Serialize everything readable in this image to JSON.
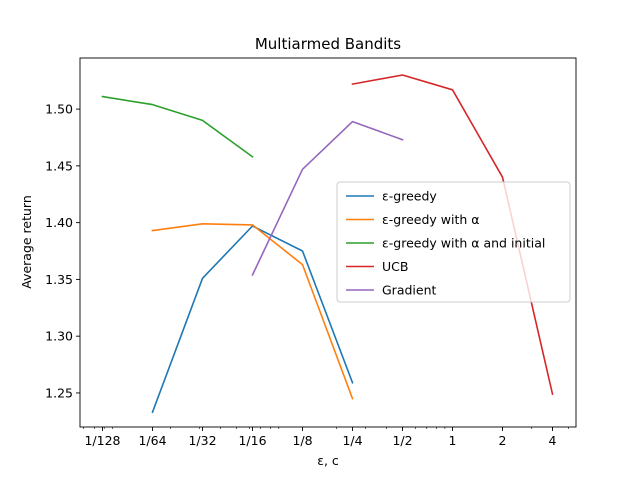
{
  "chart_data": {
    "type": "line",
    "title": "Multiarmed Bandits",
    "xlabel": "ε, c",
    "ylabel": "Average return",
    "x_scale": "log2",
    "x_ticks": [
      {
        "value": 0.0078125,
        "label": "1/128"
      },
      {
        "value": 0.015625,
        "label": "1/64"
      },
      {
        "value": 0.03125,
        "label": "1/32"
      },
      {
        "value": 0.0625,
        "label": "1/16"
      },
      {
        "value": 0.125,
        "label": "1/8"
      },
      {
        "value": 0.25,
        "label": "1/4"
      },
      {
        "value": 0.5,
        "label": "1/2"
      },
      {
        "value": 1,
        "label": "1"
      },
      {
        "value": 2,
        "label": "2"
      },
      {
        "value": 4,
        "label": "4"
      }
    ],
    "y_ticks": [
      {
        "value": 1.25,
        "label": "1.25"
      },
      {
        "value": 1.3,
        "label": "1.30"
      },
      {
        "value": 1.35,
        "label": "1.35"
      },
      {
        "value": 1.4,
        "label": "1.40"
      },
      {
        "value": 1.45,
        "label": "1.45"
      },
      {
        "value": 1.5,
        "label": "1.50"
      }
    ],
    "ylim": [
      1.22,
      1.545
    ],
    "grid": false,
    "legend_position": "center-right",
    "series": [
      {
        "name": "ε-greedy",
        "color": "#1f77b4",
        "x": [
          0.015625,
          0.03125,
          0.0625,
          0.125,
          0.25
        ],
        "y": [
          1.233,
          1.351,
          1.397,
          1.375,
          1.259
        ]
      },
      {
        "name": "ε-greedy with α",
        "color": "#ff7f0e",
        "x": [
          0.015625,
          0.03125,
          0.0625,
          0.125,
          0.25
        ],
        "y": [
          1.393,
          1.399,
          1.398,
          1.363,
          1.245
        ]
      },
      {
        "name": "ε-greedy with α and initial",
        "color": "#2ca02c",
        "x": [
          0.0078125,
          0.015625,
          0.03125,
          0.0625
        ],
        "y": [
          1.511,
          1.504,
          1.49,
          1.458
        ]
      },
      {
        "name": "UCB",
        "color": "#d62728",
        "x": [
          0.25,
          0.5,
          1,
          2,
          4
        ],
        "y": [
          1.522,
          1.53,
          1.517,
          1.44,
          1.249
        ]
      },
      {
        "name": "Gradient",
        "color": "#9467bd",
        "x": [
          0.0625,
          0.125,
          0.25,
          0.5
        ],
        "y": [
          1.354,
          1.447,
          1.489,
          1.473
        ]
      }
    ]
  }
}
